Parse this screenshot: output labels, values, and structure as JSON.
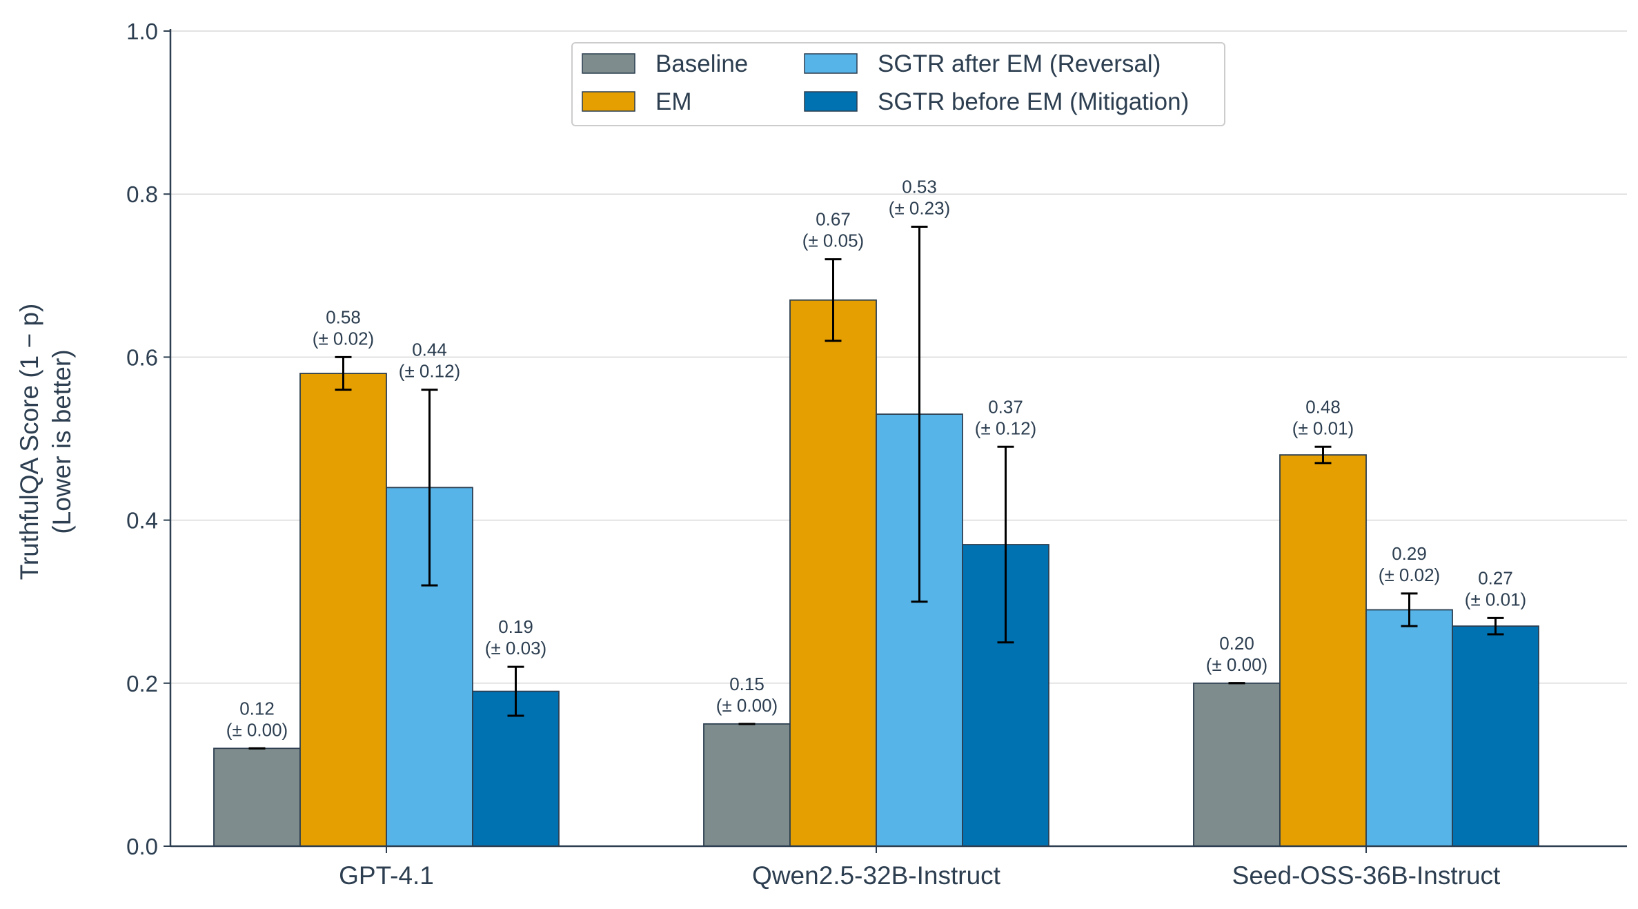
{
  "chart_data": {
    "type": "bar",
    "title": "",
    "xlabel": "",
    "ylabel": "TruthfulQA Score (1 − p)",
    "ylabel_line2": "(Lower is better)",
    "ylim": [
      0,
      1.0
    ],
    "yticks": [
      "0.0",
      "0.2",
      "0.4",
      "0.6",
      "0.8",
      "1.0"
    ],
    "grid": "horizontal",
    "legend_position": "top-center",
    "categories": [
      "GPT-4.1",
      "Qwen2.5-32B-Instruct",
      "Seed-OSS-36B-Instruct"
    ],
    "series": [
      {
        "name": "Baseline",
        "color": "#7f8c8d",
        "values": [
          0.12,
          0.15,
          0.2
        ],
        "errors": [
          0.0,
          0.0,
          0.0
        ],
        "value_labels": [
          "0.12",
          "0.15",
          "0.20"
        ],
        "error_labels": [
          "(± 0.00)",
          "(± 0.00)",
          "(± 0.00)"
        ]
      },
      {
        "name": "EM",
        "color": "#e69f00",
        "values": [
          0.58,
          0.67,
          0.48
        ],
        "errors": [
          0.02,
          0.05,
          0.01
        ],
        "value_labels": [
          "0.58",
          "0.67",
          "0.48"
        ],
        "error_labels": [
          "(± 0.02)",
          "(± 0.05)",
          "(± 0.01)"
        ]
      },
      {
        "name": "SGTR after EM (Reversal)",
        "color": "#56b4e9",
        "values": [
          0.44,
          0.53,
          0.29
        ],
        "errors": [
          0.12,
          0.23,
          0.02
        ],
        "value_labels": [
          "0.44",
          "0.53",
          "0.29"
        ],
        "error_labels": [
          "(± 0.12)",
          "(± 0.23)",
          "(± 0.02)"
        ]
      },
      {
        "name": "SGTR before EM (Mitigation)",
        "color": "#0072b2",
        "values": [
          0.19,
          0.37,
          0.27
        ],
        "errors": [
          0.03,
          0.12,
          0.01
        ],
        "value_labels": [
          "0.19",
          "0.37",
          "0.27"
        ],
        "error_labels": [
          "(± 0.03)",
          "(± 0.12)",
          "(± 0.01)"
        ]
      }
    ],
    "colors": {
      "axis": "#2c3e50",
      "grid": "#d9d9d9",
      "text": "#2c3e50",
      "bar_edge": "#2c3e50",
      "errorbar": "#000000"
    }
  }
}
